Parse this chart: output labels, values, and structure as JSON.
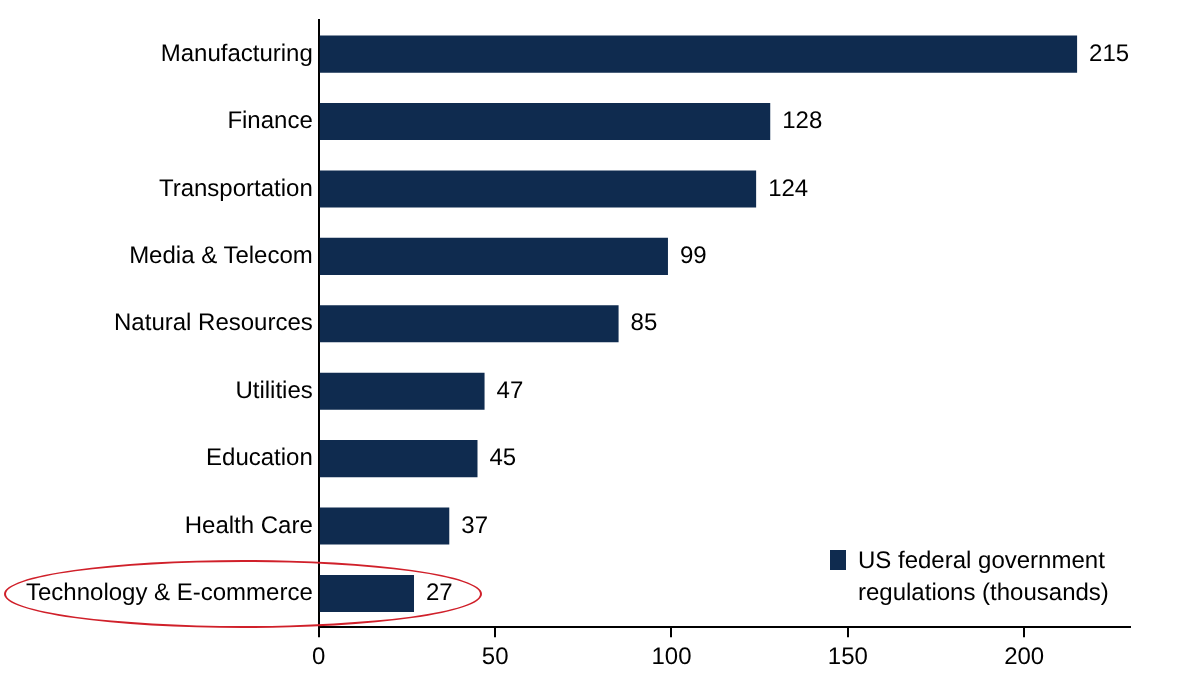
{
  "chart_data": {
    "type": "bar",
    "orientation": "horizontal",
    "categories": [
      "Manufacturing",
      "Finance",
      "Transportation",
      "Media & Telecom",
      "Natural Resources",
      "Utilities",
      "Education",
      "Health Care",
      "Technology & E-commerce"
    ],
    "series": [
      {
        "name": "US federal government regulations (thousands)",
        "color": "#0f2b4f",
        "values": [
          215,
          128,
          124,
          99,
          85,
          47,
          45,
          37,
          27
        ]
      }
    ],
    "xlim": [
      0,
      230
    ],
    "xticks": [
      0,
      50,
      100,
      150,
      200
    ],
    "data_labels": true,
    "grid": false,
    "legend": "bottom right"
  }
}
